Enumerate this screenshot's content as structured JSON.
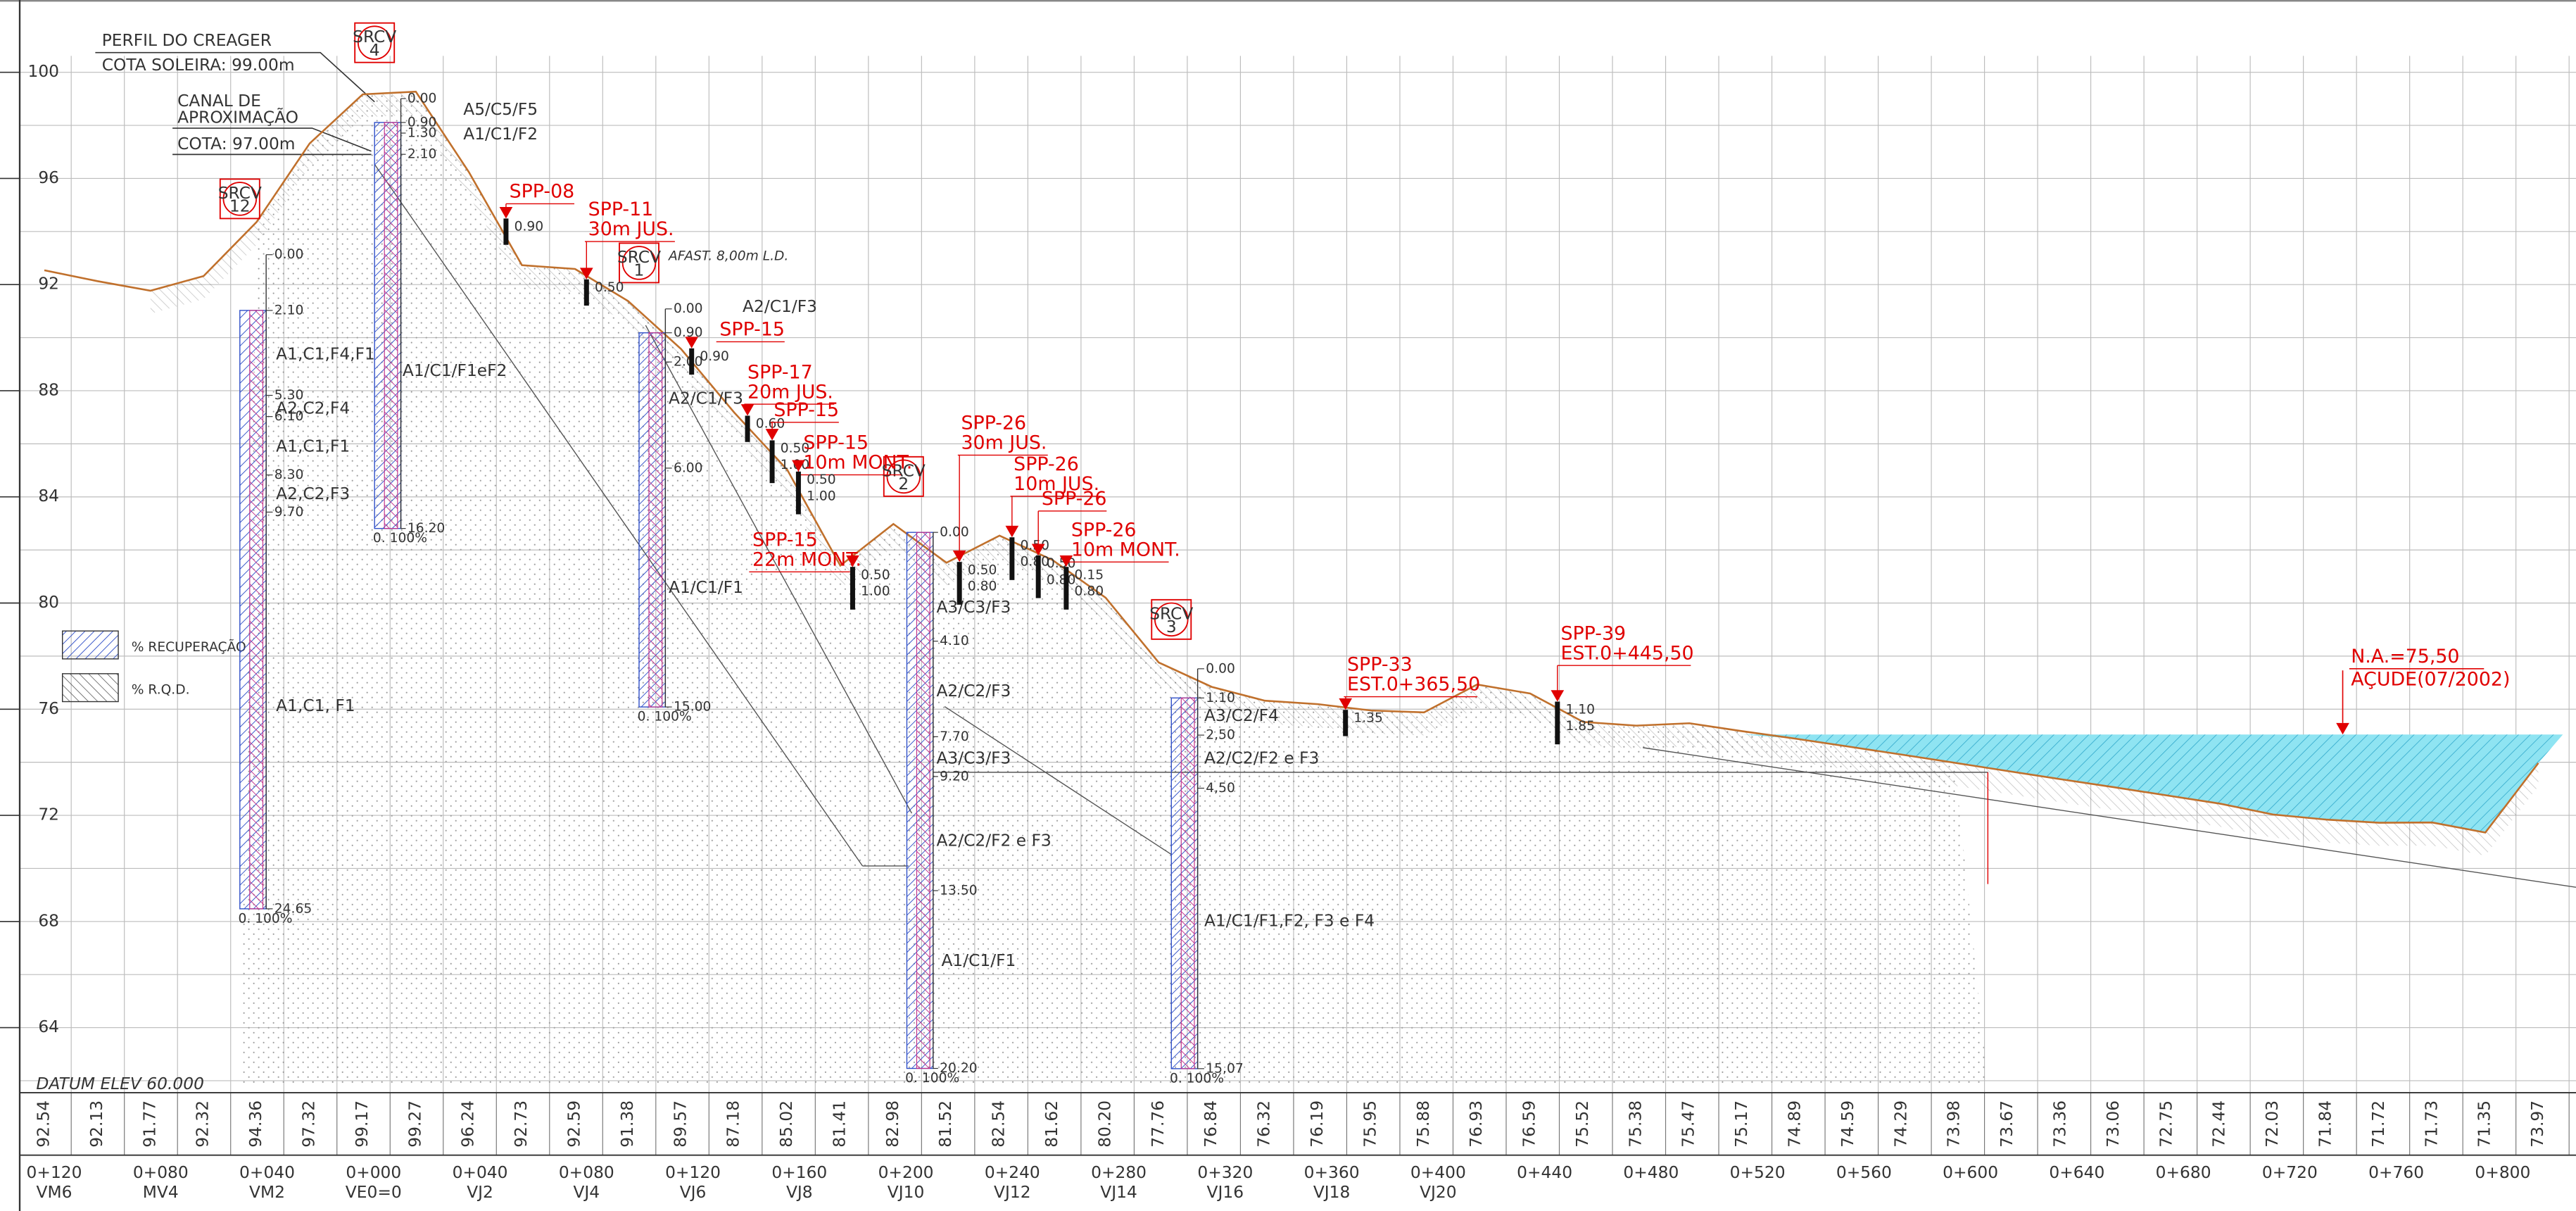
{
  "header": {
    "creager": "PERFIL DO CREAGER",
    "soleira": "COTA SOLEIRA: 99.00m",
    "canal": [
      "CANAL DE",
      "APROXIMAÇÃO"
    ],
    "canal_cota": "COTA: 97.00m",
    "note": "AFAST. 8,00m L.D."
  },
  "elevation_axis": [
    100,
    96,
    92,
    88,
    84,
    80,
    76,
    72,
    68,
    64
  ],
  "datum": "DATUM ELEV 60.000",
  "legend": [
    "% RECUPERAÇÃO",
    "% R.Q.D."
  ],
  "ground_elevations": [
    "92.54",
    "92.13",
    "91.77",
    "92.32",
    "94.36",
    "97.32",
    "99.17",
    "99.27",
    "96.24",
    "92.73",
    "92.59",
    "91.38",
    "89.57",
    "87.18",
    "85.02",
    "81.41",
    "82.98",
    "81.52",
    "82.54",
    "81.62",
    "80.20",
    "77.76",
    "76.84",
    "76.32",
    "76.19",
    "75.95",
    "75.88",
    "76.93",
    "76.59",
    "75.52",
    "75.38",
    "75.47",
    "75.17",
    "74.89",
    "74.59",
    "74.29",
    "73.98",
    "73.67",
    "73.36",
    "73.06",
    "72.75",
    "72.44",
    "72.03",
    "71.84",
    "71.72",
    "71.73",
    "71.35",
    "73.97"
  ],
  "stations": [
    {
      "km": "0+120",
      "name": "VM6"
    },
    {
      "km": "0+080",
      "name": "MV4"
    },
    {
      "km": "0+040",
      "name": "VM2"
    },
    {
      "km": "0+000",
      "name": "VE0=0"
    },
    {
      "km": "0+040",
      "name": "VJ2"
    },
    {
      "km": "0+080",
      "name": "VJ4"
    },
    {
      "km": "0+120",
      "name": "VJ6"
    },
    {
      "km": "0+160",
      "name": "VJ8"
    },
    {
      "km": "0+200",
      "name": "VJ10"
    },
    {
      "km": "0+240",
      "name": "VJ12"
    },
    {
      "km": "0+280",
      "name": "VJ14"
    },
    {
      "km": "0+320",
      "name": "VJ16"
    },
    {
      "km": "0+360",
      "name": "VJ18"
    },
    {
      "km": "0+400",
      "name": "VJ20"
    },
    {
      "km": "0+440"
    },
    {
      "km": "0+480"
    },
    {
      "km": "0+520"
    },
    {
      "km": "0+560"
    },
    {
      "km": "0+600"
    },
    {
      "km": "0+640"
    },
    {
      "km": "0+680"
    },
    {
      "km": "0+720"
    },
    {
      "km": "0+760"
    },
    {
      "km": "0+800"
    }
  ],
  "boreholes": [
    {
      "tag": "SRCV",
      "number": "12",
      "depths": [
        "0.00",
        "2.10",
        "5.30",
        "6.10",
        "8.30",
        "9.70",
        "24.65"
      ],
      "layers": [
        "A1,C1,F4,F1",
        "A2,C2,F4",
        "A1,C1,F1",
        "A2,C2,F3",
        "A1,C1, F1"
      ],
      "bottom": "0. 100%"
    },
    {
      "tag": "SRCV",
      "number": "4",
      "depths": [
        "0.00",
        "0.90",
        "1.30",
        "2.10",
        "16.20"
      ],
      "layers": [
        "A5/C5/F5",
        "A1/C1/F2",
        "A1/C1/F1eF2"
      ],
      "bottom": "0. 100%"
    },
    {
      "tag": "SRCV",
      "number": "1",
      "depths": [
        "0.00",
        "0.90",
        "2.00",
        "6.00",
        "15.00"
      ],
      "layers": [
        "A2/C1/F3",
        "A2/C1/F3",
        "A1/C1/F1"
      ],
      "bottom": "0. 100%"
    },
    {
      "tag": "SRCV",
      "number": "2",
      "depths": [
        "0.00",
        "4.10",
        "7.70",
        "9.20",
        "13.50",
        "20.20"
      ],
      "layers": [
        "A3/C3/F3",
        "A2/C2/F3",
        "A3/C3/F3",
        "A2/C2/F2 e F3",
        "A1/C1/F1"
      ],
      "bottom": "0. 100%"
    },
    {
      "tag": "SRCV",
      "number": "3",
      "depths": [
        "0.00",
        "1.10",
        "2,50",
        "4,50",
        "15,07"
      ],
      "layers": [
        "A3/C2/F4",
        "A2/C2/F2 e F3",
        "A1/C1/F1,F2, F3 e F4"
      ],
      "bottom": "0. 100%"
    }
  ],
  "spt": [
    {
      "lines": [
        "SPP-08"
      ],
      "depths": [
        "0.90"
      ]
    },
    {
      "lines": [
        "SPP-11",
        "30m JUS."
      ],
      "depths": [
        "0.50"
      ]
    },
    {
      "lines": [
        "SPP-15"
      ],
      "depths": [
        "0.90"
      ]
    },
    {
      "lines": [
        "SPP-17",
        "20m JUS."
      ],
      "depths": [
        "0.60"
      ]
    },
    {
      "lines": [
        "SPP-15"
      ],
      "depths": [
        "0.50",
        "1.00"
      ]
    },
    {
      "lines": [
        "SPP-15",
        "10m MONT."
      ],
      "depths": [
        "0.50",
        "1.00"
      ]
    },
    {
      "lines": [
        "SPP-15",
        "22m MONT."
      ],
      "depths": [
        "0.50",
        "1.00"
      ]
    },
    {
      "lines": [
        "SPP-26",
        "30m JUS."
      ],
      "depths": [
        "0.50",
        "0.80"
      ]
    },
    {
      "lines": [
        "SPP-26",
        "10m JUS."
      ],
      "depths": [
        "0.50",
        "0.80"
      ]
    },
    {
      "lines": [
        "SPP-26"
      ],
      "depths": [
        "0.50",
        "0.80"
      ]
    },
    {
      "lines": [
        "SPP-26",
        "10m MONT."
      ],
      "depths": [
        "0.15",
        "0.80"
      ]
    },
    {
      "lines": [
        "SPP-33",
        "EST.0+365,50"
      ],
      "depths": [
        "1.35"
      ]
    },
    {
      "lines": [
        "SPP-39",
        "EST.0+445,50"
      ],
      "depths": [
        "1.10",
        "1.85"
      ]
    }
  ],
  "water_level": [
    "N.A.=75,50",
    "AÇUDE(07/2002)"
  ]
}
